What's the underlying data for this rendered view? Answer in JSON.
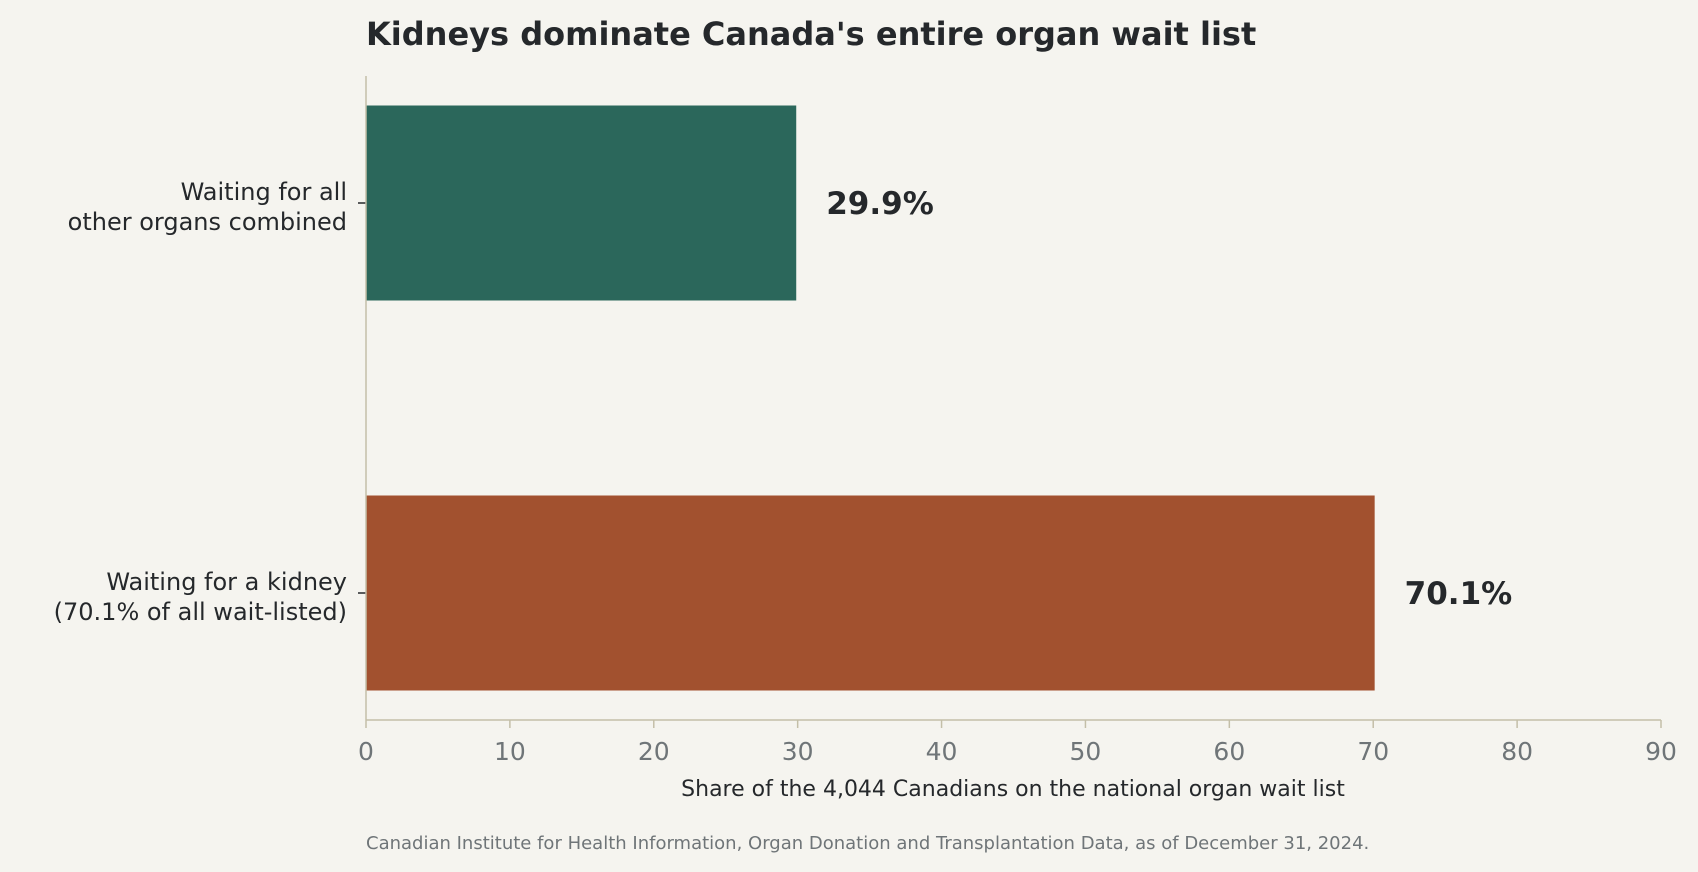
{
  "chart_data": {
    "type": "bar",
    "orientation": "horizontal",
    "title": "Kidneys dominate Canada's entire organ wait list",
    "categories": [
      [
        "Waiting for all",
        "other organs combined"
      ],
      [
        "Waiting for a kidney",
        "(70.1% of all wait-listed)"
      ]
    ],
    "values": [
      29.9,
      70.1
    ],
    "value_labels": [
      "29.9%",
      "70.1%"
    ],
    "bar_colors": [
      "#2b675b",
      "#a2512f"
    ],
    "xlabel": "Share of the 4,044 Canadians on the national organ wait list",
    "xlim": [
      0,
      90
    ],
    "xticks": [
      0,
      10,
      20,
      30,
      40,
      50,
      60,
      70,
      80,
      90
    ],
    "grid": false,
    "legend": "none",
    "source": "Canadian Institute for Health Information, Organ Donation and Transplantation Data, as of December 31, 2024."
  },
  "colors": {
    "background": "#f5f4ef",
    "axis": "#c4bfa8",
    "text": "#25282b",
    "muted": "#6f7578"
  }
}
